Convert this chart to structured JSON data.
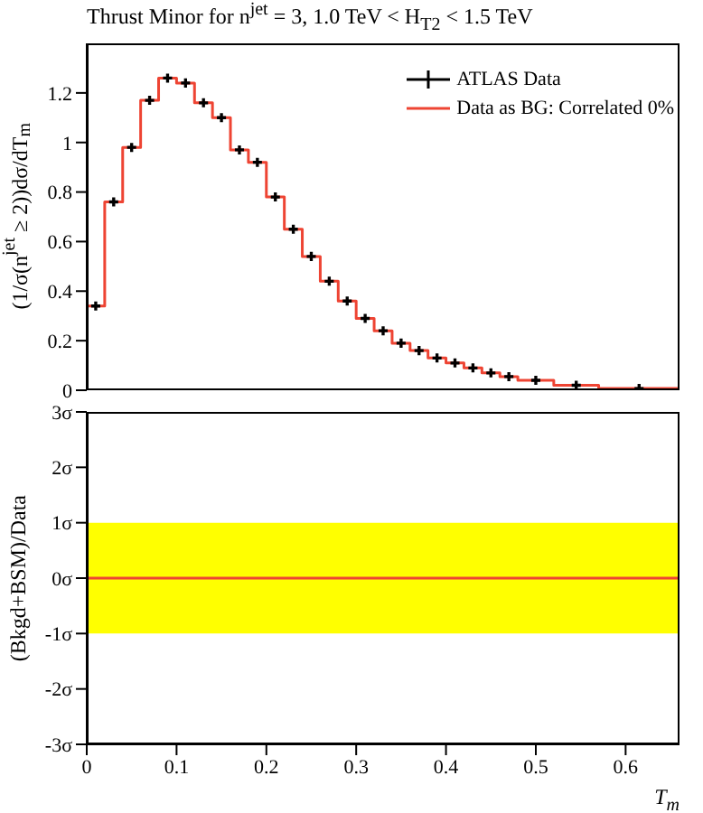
{
  "chart_data": [
    {
      "type": "histogram",
      "title": "Thrust Minor for n$^{jet}$ = 3, 1.0 TeV < H$_{T2}$ < 1.5 TeV",
      "ylabel": "(1/σ(n$^{jet}$ ≥ 2))dσ/dT$_{m}$",
      "bins": [
        0,
        0.02,
        0.04,
        0.06,
        0.08,
        0.1,
        0.12,
        0.14,
        0.16,
        0.18,
        0.2,
        0.22,
        0.24,
        0.26,
        0.28,
        0.3,
        0.32,
        0.34,
        0.36,
        0.38,
        0.4,
        0.42,
        0.44,
        0.46,
        0.48,
        0.52,
        0.57,
        0.66
      ],
      "series": [
        {
          "name": "ATLAS Data",
          "type": "scatter",
          "color": "#000000",
          "x": [
            0.01,
            0.03,
            0.05,
            0.07,
            0.09,
            0.11,
            0.13,
            0.15,
            0.17,
            0.19,
            0.21,
            0.23,
            0.25,
            0.27,
            0.29,
            0.31,
            0.33,
            0.35,
            0.37,
            0.39,
            0.41,
            0.43,
            0.45,
            0.47,
            0.5,
            0.545,
            0.615
          ],
          "values": [
            0.34,
            0.76,
            0.98,
            1.17,
            1.26,
            1.24,
            1.16,
            1.1,
            0.97,
            0.92,
            0.78,
            0.65,
            0.54,
            0.44,
            0.36,
            0.29,
            0.24,
            0.19,
            0.16,
            0.13,
            0.11,
            0.09,
            0.07,
            0.055,
            0.04,
            0.02,
            0.007
          ]
        },
        {
          "name": "Data as BG: Correlated 0%",
          "color": "#ee4433",
          "values": [
            0.34,
            0.76,
            0.98,
            1.17,
            1.26,
            1.24,
            1.16,
            1.1,
            0.97,
            0.92,
            0.78,
            0.65,
            0.54,
            0.44,
            0.36,
            0.29,
            0.24,
            0.19,
            0.16,
            0.13,
            0.11,
            0.09,
            0.07,
            0.055,
            0.04,
            0.02,
            0.007
          ]
        }
      ],
      "marker": "cross",
      "xlim": [
        0,
        0.66
      ],
      "xticks": [
        0,
        0.1,
        0.2,
        0.3,
        0.4,
        0.5,
        0.6
      ],
      "ylim": [
        0,
        1.4
      ],
      "yticks": [
        0,
        0.2,
        0.4,
        0.6,
        0.8,
        1,
        1.2
      ],
      "tick_labels": "y",
      "legend": "top right"
    },
    {
      "type": "line",
      "xlabel": "T$_{m}$",
      "ylabel": "(Bkgd+BSM)/Data",
      "series": [
        {
          "color": "#ee4433",
          "x": [
            0,
            0.66
          ],
          "values": [
            0,
            0
          ]
        }
      ],
      "bands": [
        {
          "axis": "y",
          "from": -1,
          "to": 1,
          "color": "#ffff00"
        }
      ],
      "xlim": [
        0,
        0.66
      ],
      "xticks": [
        0,
        0.1,
        0.2,
        0.3,
        0.4,
        0.5,
        0.6
      ],
      "ylim": [
        -3,
        3
      ],
      "yticks": [
        {
          "value": -3,
          "label": "-3σ"
        },
        {
          "value": -2,
          "label": "-2σ"
        },
        {
          "value": -1,
          "label": "-1σ"
        },
        {
          "value": 0,
          "label": "0σ"
        },
        {
          "value": 1,
          "label": "1σ"
        },
        {
          "value": 2,
          "label": "2σ"
        },
        {
          "value": 3,
          "label": "3σ"
        }
      ]
    }
  ]
}
